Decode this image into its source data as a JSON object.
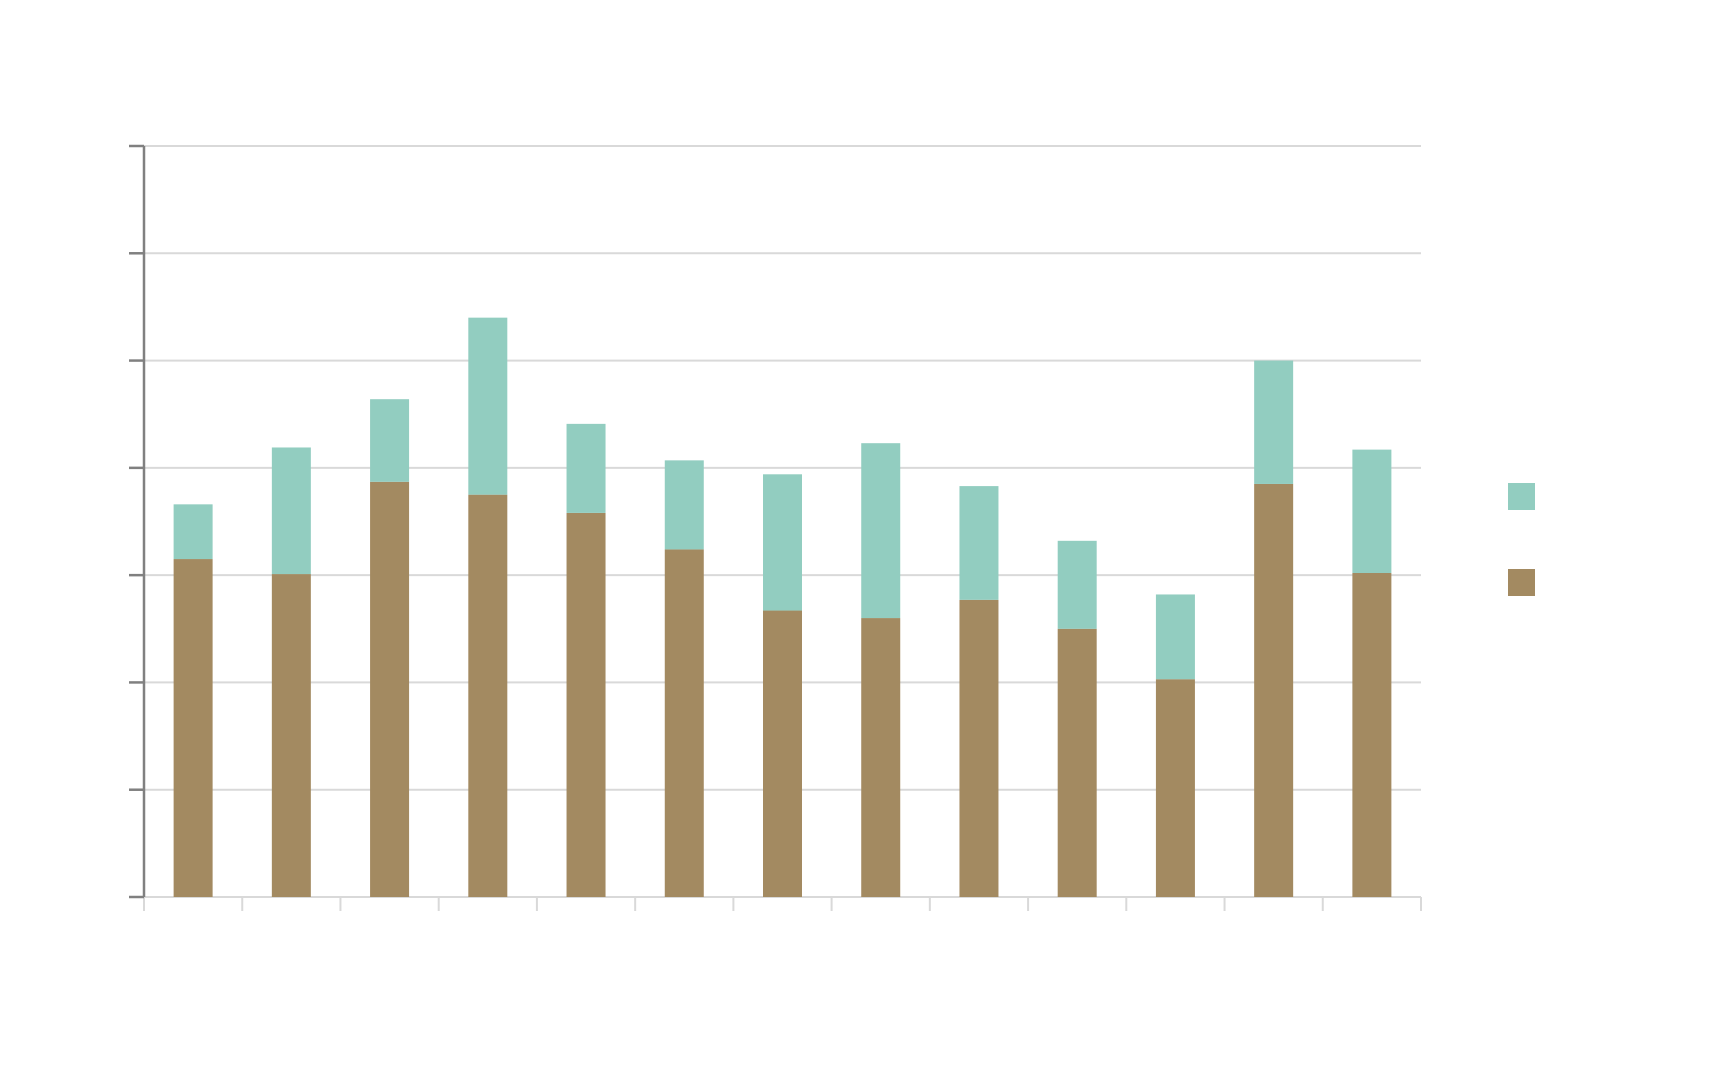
{
  "chart_data": {
    "type": "bar",
    "stacked": true,
    "categories": [
      "",
      "",
      "",
      "",
      "",
      "",
      "",
      "",
      "",
      "",
      "",
      "",
      ""
    ],
    "series": [
      {
        "values": [
          3.15,
          3.01,
          3.87,
          3.75,
          3.58,
          3.24,
          2.67,
          2.6,
          2.77,
          2.5,
          2.03,
          3.85,
          3.02
        ],
        "color": "#a38a61"
      },
      {
        "values": [
          0.51,
          1.18,
          0.77,
          1.65,
          0.83,
          0.83,
          1.27,
          1.63,
          1.06,
          0.82,
          0.79,
          1.15,
          1.15
        ],
        "color": "#92cdc0"
      }
    ],
    "ylim": [
      0,
      7
    ],
    "y_ticks": [
      0,
      1,
      2,
      3,
      4,
      5,
      6,
      7
    ],
    "grid": true,
    "legend": "right",
    "title": "",
    "xlabel": "",
    "ylabel": ""
  }
}
